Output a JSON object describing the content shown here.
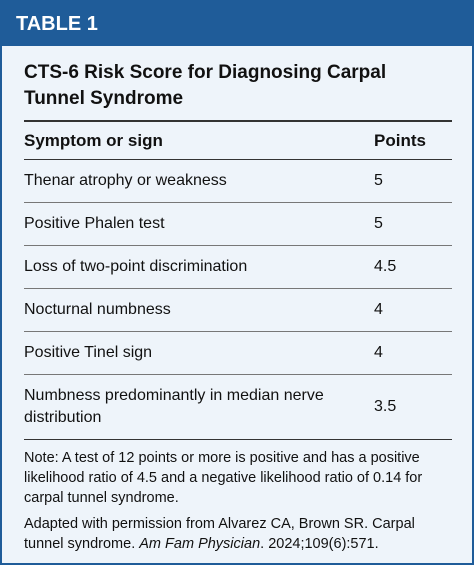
{
  "header": {
    "label": "TABLE 1",
    "title": "CTS-6 Risk Score for Diagnosing Carpal Tunnel Syndrome"
  },
  "table": {
    "columns": [
      "Symptom or sign",
      "Points"
    ],
    "rows": [
      [
        "Thenar atrophy or weakness",
        5
      ],
      [
        "Positive Phalen test",
        5
      ],
      [
        "Loss of two-point discrimination",
        4.5
      ],
      [
        "Nocturnal numbness",
        4
      ],
      [
        "Positive Tinel sign",
        4
      ],
      [
        "Numbness predominantly in median nerve distribution",
        3.5
      ]
    ]
  },
  "note": "Note: A test of 12 points or more is positive and has a positive likelihood ratio of 4.5 and a negative likelihood ratio of 0.14 for carpal tunnel syndrome.",
  "source": {
    "before": "Adapted with permission from Alvarez CA, Brown SR. Carpal tunnel syndrome.",
    "journal": "Am Fam Physician",
    "after": ". 2024;109(6):571."
  }
}
